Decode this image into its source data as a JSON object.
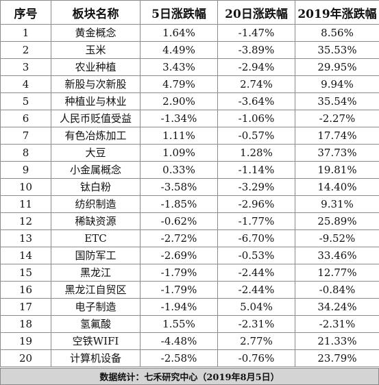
{
  "headers": [
    "序号",
    "板块名称",
    "5日涨跌幅",
    "20日涨跌幅",
    "2019年涨跌幅"
  ],
  "rows": [
    [
      "1",
      "黄金概念",
      "1.64%",
      "-1.47%",
      "8.56%"
    ],
    [
      "2",
      "玉米",
      "4.49%",
      "-3.89%",
      "35.53%"
    ],
    [
      "3",
      "农业种植",
      "3.43%",
      "-2.94%",
      "29.95%"
    ],
    [
      "4",
      "新股与次新股",
      "4.79%",
      "2.74%",
      "9.94%"
    ],
    [
      "5",
      "种植业与林业",
      "2.90%",
      "-3.64%",
      "35.54%"
    ],
    [
      "6",
      "人民币贬值受益",
      "-1.34%",
      "-1.06%",
      "-2.27%"
    ],
    [
      "7",
      "有色冶炼加工",
      "1.11%",
      "-0.57%",
      "17.74%"
    ],
    [
      "8",
      "大豆",
      "1.09%",
      "1.28%",
      "37.73%"
    ],
    [
      "9",
      "小金属概念",
      "0.33%",
      "-1.14%",
      "19.81%"
    ],
    [
      "10",
      "钛白粉",
      "-3.58%",
      "-3.29%",
      "14.40%"
    ],
    [
      "11",
      "纺织制造",
      "-1.85%",
      "-2.96%",
      "9.31%"
    ],
    [
      "12",
      "稀缺资源",
      "-0.62%",
      "-1.77%",
      "25.89%"
    ],
    [
      "13",
      "ETC",
      "-2.72%",
      "-6.70%",
      "-9.52%"
    ],
    [
      "14",
      "国防军工",
      "-2.69%",
      "-0.53%",
      "33.46%"
    ],
    [
      "15",
      "黑龙江",
      "-1.79%",
      "-2.44%",
      "12.77%"
    ],
    [
      "16",
      "黑龙江自贸区",
      "-1.79%",
      "-2.44%",
      "-0.84%"
    ],
    [
      "17",
      "电子制造",
      "-1.94%",
      "5.04%",
      "34.24%"
    ],
    [
      "18",
      "氢氟酸",
      "1.55%",
      "-2.31%",
      "-2.31%"
    ],
    [
      "19",
      "空铁WIFI",
      "-4.48%",
      "2.77%",
      "21.33%"
    ],
    [
      "20",
      "计算机设备",
      "-2.58%",
      "-0.76%",
      "23.79%"
    ]
  ],
  "footer": "数据统计：七禾研究中心（2019年8月5日）"
}
